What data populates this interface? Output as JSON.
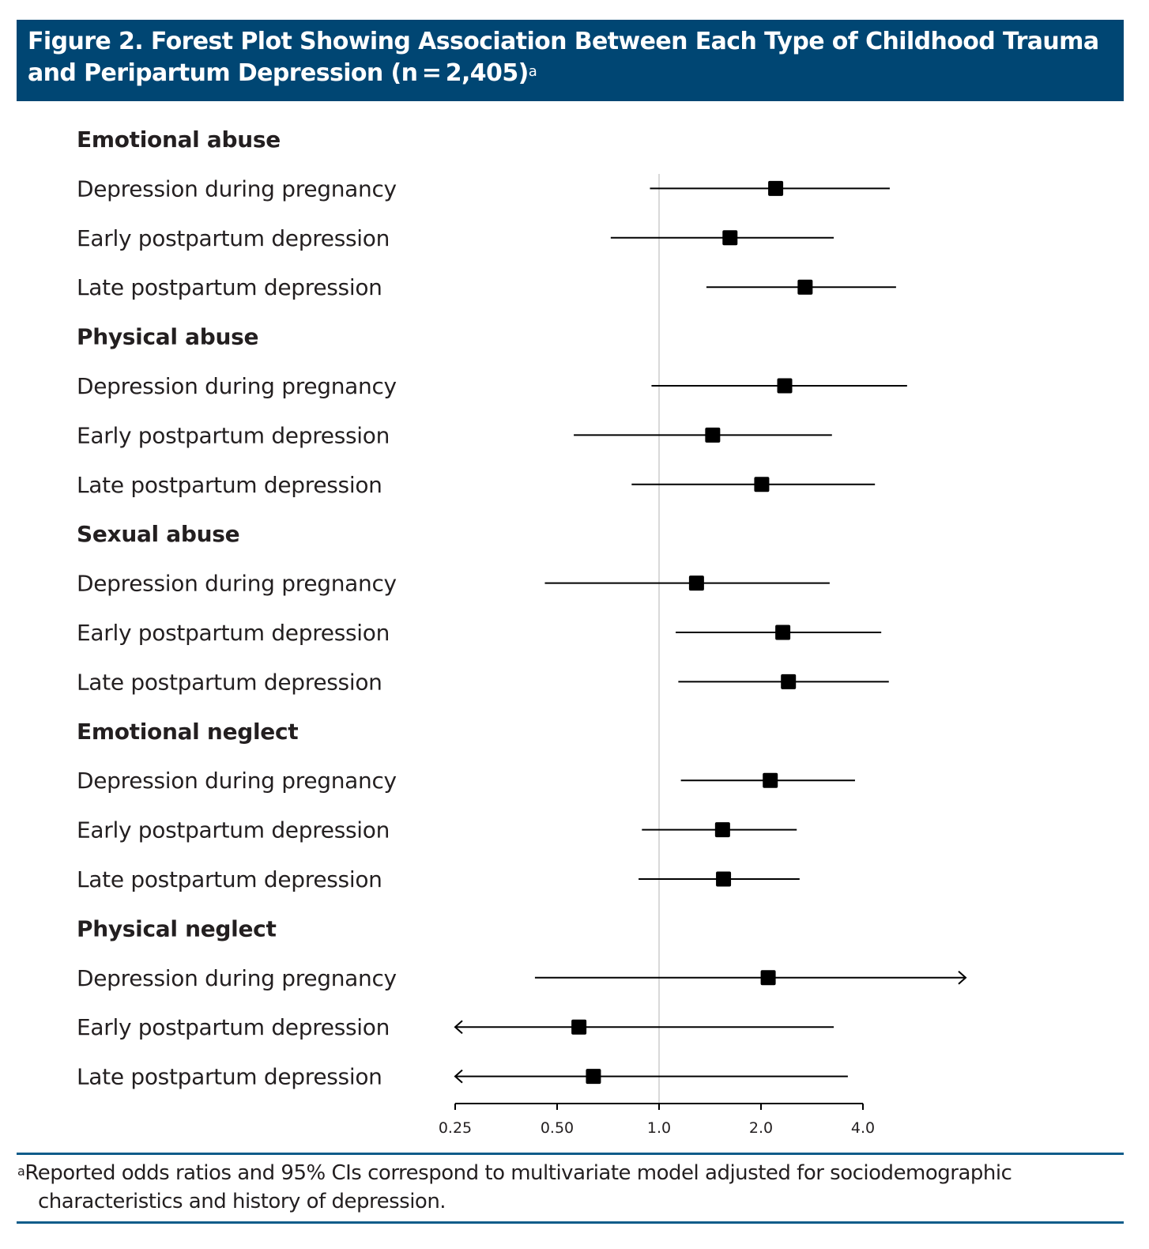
{
  "figure": {
    "title_line1": "Figure 2. Forest Plot Showing Association Between Each Type of Childhood Trauma",
    "title_line2": "and Peripartum Depression (n = 2,405)",
    "title_superscript": "a",
    "footnote_marker": "a",
    "footnote_line1": "Reported odds ratios and 95% CIs correspond to multivariate model adjusted for sociodemographic",
    "footnote_line2": "characteristics and history of depression.",
    "colors": {
      "title_bar": "#004673",
      "rule": "#0f5c8a",
      "marker": "#000000",
      "reference_line": "#d9d9d9"
    }
  },
  "chart_data": {
    "type": "forest",
    "title": "Forest Plot Showing Association Between Each Type of Childhood Trauma and Peripartum Depression (n = 2,405)",
    "xlabel": "",
    "ylabel": "",
    "x_scale": "log2",
    "xlim": [
      0.25,
      4.0
    ],
    "reference_value": 1.0,
    "x_ticks": [
      0.25,
      0.5,
      1.0,
      2.0,
      4.0
    ],
    "x_tick_labels": [
      "0.25",
      "0.50",
      "1.0",
      "2.0",
      "4.0"
    ],
    "grid": false,
    "legend": "none",
    "groups": [
      {
        "name": "Emotional abuse",
        "items": [
          {
            "label": "Depression during pregnancy",
            "or": 2.21,
            "lo": 0.94,
            "hi": 4.8
          },
          {
            "label": "Early postpartum depression",
            "or": 1.62,
            "lo": 0.72,
            "hi": 3.28
          },
          {
            "label": "Late postpartum depression",
            "or": 2.7,
            "lo": 1.38,
            "hi": 5.01
          }
        ]
      },
      {
        "name": "Physical abuse",
        "items": [
          {
            "label": "Depression during pregnancy",
            "or": 2.35,
            "lo": 0.95,
            "hi": 5.4
          },
          {
            "label": "Early postpartum depression",
            "or": 1.44,
            "lo": 0.56,
            "hi": 3.24
          },
          {
            "label": "Late postpartum depression",
            "or": 2.01,
            "lo": 0.83,
            "hi": 4.34
          }
        ]
      },
      {
        "name": "Sexual abuse",
        "items": [
          {
            "label": "Depression during pregnancy",
            "or": 1.29,
            "lo": 0.46,
            "hi": 3.19
          },
          {
            "label": "Early postpartum depression",
            "or": 2.32,
            "lo": 1.12,
            "hi": 4.53
          },
          {
            "label": "Late postpartum depression",
            "or": 2.41,
            "lo": 1.14,
            "hi": 4.77
          }
        ]
      },
      {
        "name": "Emotional neglect",
        "items": [
          {
            "label": "Depression during pregnancy",
            "or": 2.13,
            "lo": 1.16,
            "hi": 3.79
          },
          {
            "label": "Early postpartum depression",
            "or": 1.54,
            "lo": 0.89,
            "hi": 2.55
          },
          {
            "label": "Late postpartum depression",
            "or": 1.55,
            "lo": 0.87,
            "hi": 2.6
          }
        ]
      },
      {
        "name": "Physical neglect",
        "items": [
          {
            "label": "Depression during pregnancy",
            "or": 2.1,
            "lo": 0.43,
            "hi": 7.5,
            "hi_truncated": true
          },
          {
            "label": "Early postpartum depression",
            "or": 0.58,
            "lo": 0.2,
            "hi": 3.28,
            "lo_truncated": true
          },
          {
            "label": "Late postpartum depression",
            "or": 0.64,
            "lo": 0.2,
            "hi": 3.61,
            "lo_truncated": true
          }
        ]
      }
    ]
  }
}
